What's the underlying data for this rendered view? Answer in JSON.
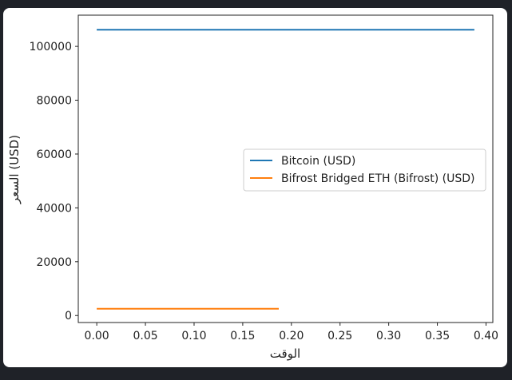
{
  "chart_data": {
    "type": "line",
    "title": "",
    "xlabel": "الوقت",
    "ylabel": "السعر (USD)",
    "xlim": [
      -0.019,
      0.407
    ],
    "ylim": [
      -2600,
      111600
    ],
    "x_ticks": [
      0.0,
      0.05,
      0.1,
      0.15,
      0.2,
      0.25,
      0.3,
      0.35,
      0.4
    ],
    "x_tick_labels": [
      "0.00",
      "0.05",
      "0.10",
      "0.15",
      "0.20",
      "0.25",
      "0.30",
      "0.35",
      "0.40"
    ],
    "y_ticks": [
      0,
      20000,
      40000,
      60000,
      80000,
      100000
    ],
    "y_tick_labels": [
      "0",
      "20000",
      "40000",
      "60000",
      "80000",
      "100000"
    ],
    "grid": false,
    "legend_position": "center-right",
    "series": [
      {
        "name": "Bitcoin (USD)",
        "color": "#1f77b4",
        "x": [
          0.0,
          0.388
        ],
        "y": [
          106200,
          106200
        ]
      },
      {
        "name": "Bifrost Bridged ETH (Bifrost) (USD)",
        "color": "#ff7f0e",
        "x": [
          0.0,
          0.187
        ],
        "y": [
          2500,
          2500
        ]
      }
    ]
  }
}
